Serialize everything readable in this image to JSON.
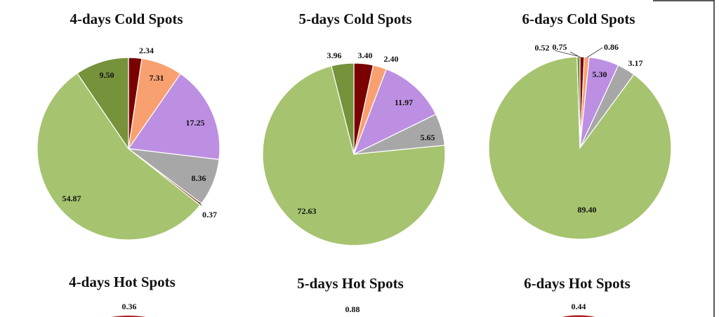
{
  "colors": {
    "dark-red": "#7b0000",
    "salmon": "#f9a070",
    "lavender": "#bd8fe3",
    "gray": "#a7a7a7",
    "brown": "#8b4a2a",
    "light-green": "#a6c36f",
    "dark-green": "#76923a"
  },
  "chart_data": [
    {
      "type": "pie",
      "title": "4-days Cold Spots",
      "slices": [
        {
          "label": "2.34",
          "value": 2.34,
          "color": "#7b0000"
        },
        {
          "label": "7.31",
          "value": 7.31,
          "color": "#f9a070"
        },
        {
          "label": "17.25",
          "value": 17.25,
          "color": "#bd8fe3"
        },
        {
          "label": "8.36",
          "value": 8.36,
          "color": "#a7a7a7"
        },
        {
          "label": "0.37",
          "value": 0.37,
          "color": "#8b4a2a"
        },
        {
          "label": "54.87",
          "value": 54.87,
          "color": "#a6c36f"
        },
        {
          "label": "9.50",
          "value": 9.5,
          "color": "#76923a"
        }
      ]
    },
    {
      "type": "pie",
      "title": "5-days Cold Spots",
      "slices": [
        {
          "label": "3.40",
          "value": 3.4,
          "color": "#7b0000"
        },
        {
          "label": "2.40",
          "value": 2.4,
          "color": "#f9a070"
        },
        {
          "label": "11.97",
          "value": 11.97,
          "color": "#bd8fe3"
        },
        {
          "label": "5.65",
          "value": 5.65,
          "color": "#a7a7a7"
        },
        {
          "label": "72.63",
          "value": 72.63,
          "color": "#a6c36f"
        },
        {
          "label": "3.96",
          "value": 3.96,
          "color": "#76923a"
        }
      ]
    },
    {
      "type": "pie",
      "title": "6-days Cold Spots",
      "slices": [
        {
          "label": "0.75",
          "value": 0.75,
          "color": "#7b0000"
        },
        {
          "label": "0.86",
          "value": 0.86,
          "color": "#f9a070"
        },
        {
          "label": "5.30",
          "value": 5.3,
          "color": "#bd8fe3"
        },
        {
          "label": "3.17",
          "value": 3.17,
          "color": "#a7a7a7"
        },
        {
          "label": "89.40",
          "value": 89.4,
          "color": "#a6c36f"
        },
        {
          "label": "0.52",
          "value": 0.52,
          "color": "#76923a"
        }
      ]
    },
    {
      "type": "pie",
      "title": "4-days Hot Spots",
      "slices": [
        {
          "label": "0.36",
          "value": 0.36,
          "color": "#7b0000"
        }
      ]
    },
    {
      "type": "pie",
      "title": "5-days Hot Spots",
      "slices": [
        {
          "label": "0.88",
          "value": 0.88,
          "color": "#7b0000"
        }
      ]
    },
    {
      "type": "pie",
      "title": "6-days Hot Spots",
      "slices": [
        {
          "label": "0.44",
          "value": 0.44,
          "color": "#7b0000"
        }
      ]
    }
  ]
}
